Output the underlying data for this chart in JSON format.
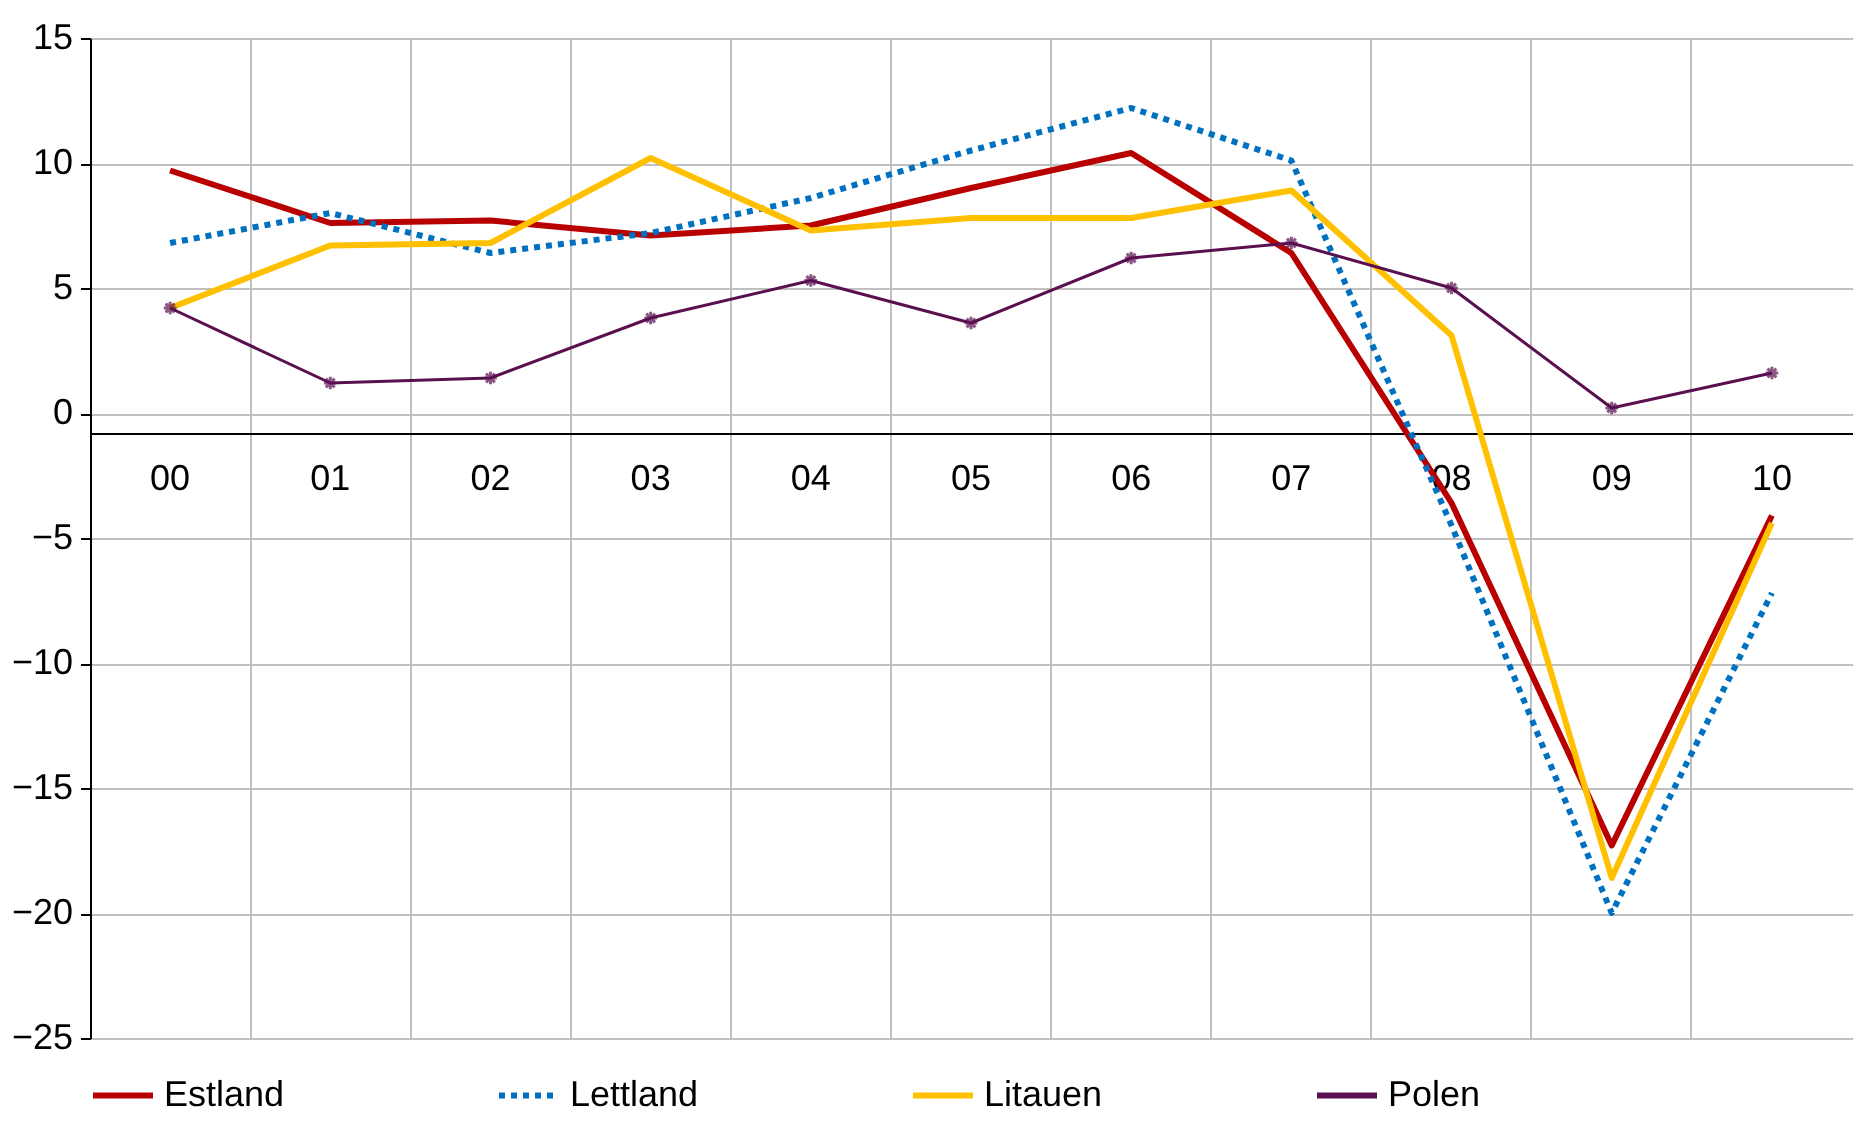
{
  "chart_data": {
    "type": "line",
    "categories": [
      "00",
      "01",
      "02",
      "03",
      "04",
      "05",
      "06",
      "07",
      "08",
      "09",
      "10"
    ],
    "series": [
      {
        "name": "Estland",
        "color": "#b80000",
        "line_style": "solid",
        "values": [
          9.7,
          7.6,
          7.7,
          7.1,
          7.5,
          9.0,
          10.4,
          6.4,
          -3.6,
          -17.3,
          -4.1
        ]
      },
      {
        "name": "Lettland",
        "color": "#0070c0",
        "line_style": "dotted",
        "values": [
          6.8,
          8.0,
          6.4,
          7.2,
          8.6,
          10.5,
          12.2,
          10.1,
          -4.5,
          -20.0,
          -7.2
        ]
      },
      {
        "name": "Litauen",
        "color": "#ffc000",
        "line_style": "solid",
        "values": [
          4.2,
          6.7,
          6.8,
          10.2,
          7.3,
          7.8,
          7.8,
          8.9,
          3.1,
          -18.6,
          -4.4
        ]
      },
      {
        "name": "Polen",
        "color": "#5a1050",
        "line_style": "solid",
        "marker": "cross",
        "values": [
          4.2,
          1.2,
          1.4,
          3.8,
          5.3,
          3.6,
          6.2,
          6.8,
          5.0,
          0.2,
          1.6
        ]
      }
    ],
    "ylim": [
      -25,
      15
    ],
    "yticks": [
      -25,
      -20,
      -15,
      -10,
      -5,
      0,
      5,
      10,
      15
    ],
    "grid": true,
    "legend": "bottom"
  }
}
